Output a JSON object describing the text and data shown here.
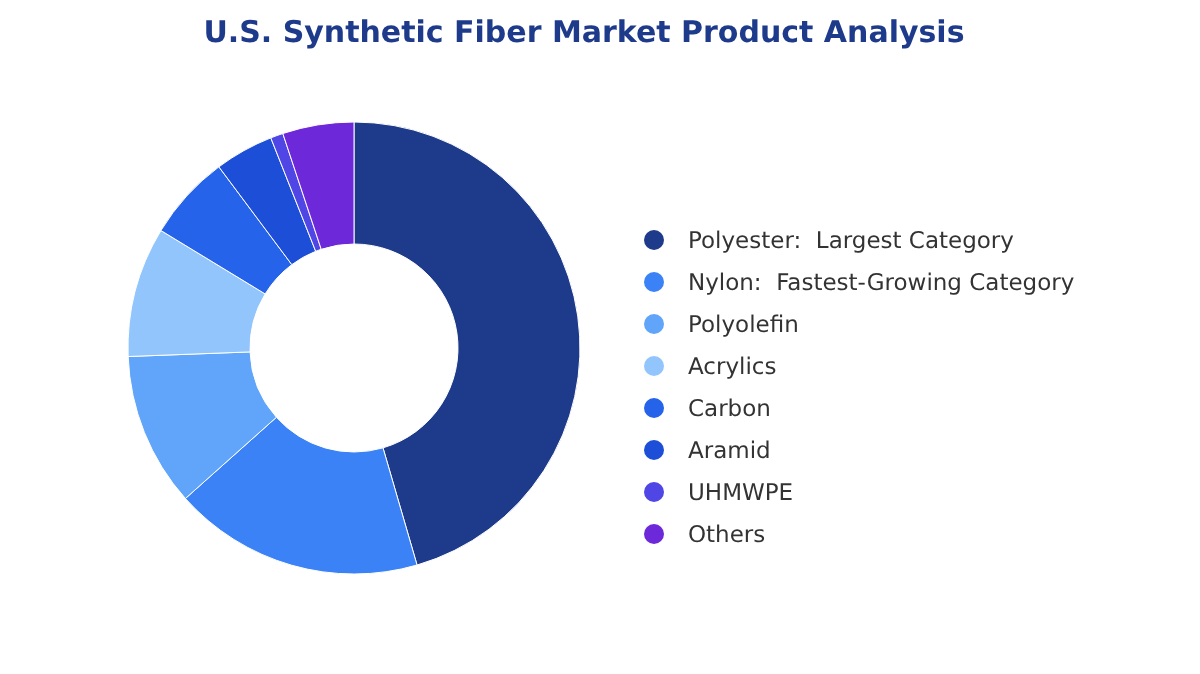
{
  "chart_data": {
    "type": "donut",
    "title": "U.S. Synthetic Fiber Market Product Analysis",
    "categories": [
      "Polyester:  Largest Category",
      "Nylon:  Fastest-Growing Category",
      "Polyolefin",
      "Acrylics",
      "Carbon",
      "Aramid",
      "UHMWPE",
      "Others"
    ],
    "values": [
      45.5,
      17.9,
      11,
      9.3,
      6.1,
      4.2,
      0.9,
      5.1
    ],
    "colors": [
      "#1e3a8a",
      "#3b82f6",
      "#60a5fa",
      "#93c5fd",
      "#2563eb",
      "#1d4ed8",
      "#4f46e5",
      "#6d28d9"
    ],
    "legend": "right"
  }
}
